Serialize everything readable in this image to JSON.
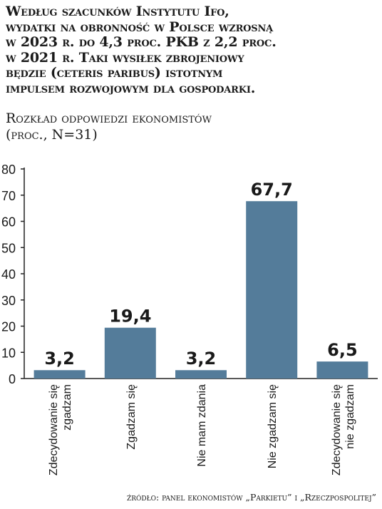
{
  "title_lines": [
    "Według szacunków Instytutu Ifo,",
    "wydatki na obronność w Polsce wzrosną",
    "w 2023 r. do 4,3 proc. PKB z 2,2 proc.",
    "w 2021 r. Taki wysiłek zbrojeniowy",
    "będzie (ceteris paribus) istotnym",
    "impulsem rozwojowym dla gospodarki."
  ],
  "subtitle_lines": [
    "Rozkład odpowiedzi ekonomistów",
    "(proc., N=31)"
  ],
  "source": "źródło: panel ekonomistów „Parkietu” i „Rzeczpospolitej”",
  "colors": {
    "bar": "#547c9a",
    "axis": "#222222",
    "text": "#1a1a1a"
  },
  "chart_data": {
    "type": "bar",
    "categories": [
      "Zdecydowanie się zgadzam",
      "Zgadzam się",
      "Nie mam zdania",
      "Nie zgadzam się",
      "Zdecydowanie się nie zgadzam"
    ],
    "category_label_lines": [
      [
        "Zdecydowanie się",
        "zgadzam"
      ],
      [
        "Zgadzam się"
      ],
      [
        "Nie mam zdania"
      ],
      [
        "Nie zgadzam się"
      ],
      [
        "Zdecydowanie się",
        "nie zgadzam"
      ]
    ],
    "values": [
      3.2,
      19.4,
      3.2,
      67.7,
      6.5
    ],
    "value_labels": [
      "3,2",
      "19,4",
      "3,2",
      "67,7",
      "6,5"
    ],
    "yticks": [
      0,
      10,
      20,
      30,
      40,
      50,
      60,
      70,
      80
    ],
    "ylim": [
      0,
      80
    ],
    "xlabel": "",
    "ylabel": "",
    "grid": false,
    "legend": "none"
  }
}
